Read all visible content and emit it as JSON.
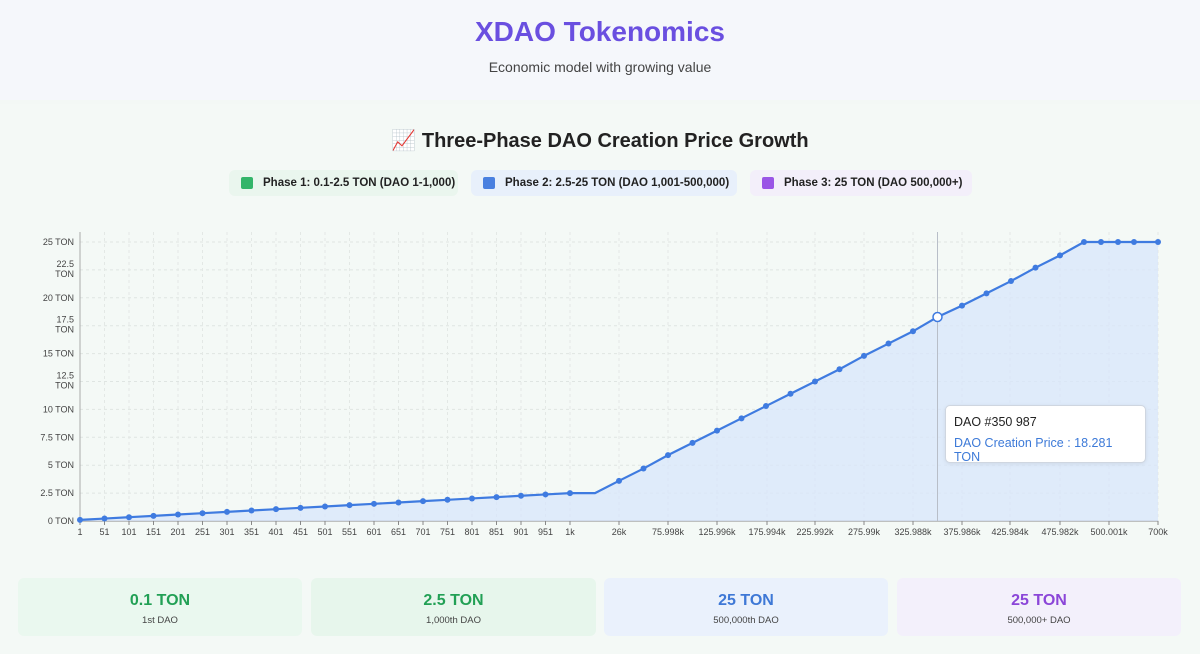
{
  "header": {
    "title": "XDAO Tokenomics",
    "subtitle": "Economic model with growing value"
  },
  "chart_title": "📈 Three-Phase DAO Creation Price Growth",
  "colors": {
    "phase1": "#34b56a",
    "phase2": "#4a80e0",
    "phase3": "#9a55e6",
    "line": "#3f7be0",
    "area": "#d8e6fb"
  },
  "legend": [
    {
      "label": "Phase 1: 0.1-2.5 TON (DAO 1-1,000)"
    },
    {
      "label": "Phase 2: 2.5-25 TON (DAO 1,001-500,000)"
    },
    {
      "label": "Phase 3: 25 TON (DAO 500,000+)"
    }
  ],
  "tooltip": {
    "title": "DAO #350 987",
    "label": "DAO Creation Price : 18.281 TON"
  },
  "chart_data": {
    "type": "area",
    "title": "📈 Three-Phase DAO Creation Price Growth",
    "xlabel": "",
    "ylabel": "",
    "ylim": [
      0,
      25
    ],
    "grid": true,
    "legend_position": "top",
    "y_ticks": [
      "0 TON",
      "2.5 TON",
      "5 TON",
      "7.5 TON",
      "10 TON",
      "12.5 TON",
      "15 TON",
      "17.5 TON",
      "20 TON",
      "22.5 TON",
      "25 TON"
    ],
    "x_tick_labels": [
      "1",
      "51",
      "101",
      "151",
      "201",
      "251",
      "301",
      "351",
      "401",
      "451",
      "501",
      "551",
      "601",
      "651",
      "701",
      "751",
      "801",
      "851",
      "901",
      "951",
      "1k",
      "26k",
      "75.998k",
      "125.996k",
      "175.994k",
      "225.992k",
      "275.99k",
      "325.988k",
      "375.986k",
      "425.984k",
      "475.982k",
      "500.001k",
      "700k"
    ],
    "points": [
      {
        "dao": 1,
        "price": 0.1
      },
      {
        "dao": 51,
        "price": 0.22
      },
      {
        "dao": 101,
        "price": 0.34
      },
      {
        "dao": 151,
        "price": 0.46
      },
      {
        "dao": 201,
        "price": 0.58
      },
      {
        "dao": 251,
        "price": 0.7
      },
      {
        "dao": 301,
        "price": 0.82
      },
      {
        "dao": 351,
        "price": 0.94
      },
      {
        "dao": 401,
        "price": 1.06
      },
      {
        "dao": 451,
        "price": 1.18
      },
      {
        "dao": 501,
        "price": 1.3
      },
      {
        "dao": 551,
        "price": 1.42
      },
      {
        "dao": 601,
        "price": 1.54
      },
      {
        "dao": 651,
        "price": 1.66
      },
      {
        "dao": 701,
        "price": 1.78
      },
      {
        "dao": 751,
        "price": 1.9
      },
      {
        "dao": 801,
        "price": 2.02
      },
      {
        "dao": 851,
        "price": 2.14
      },
      {
        "dao": 901,
        "price": 2.26
      },
      {
        "dao": 951,
        "price": 2.38
      },
      {
        "dao": 1000,
        "price": 2.5
      },
      {
        "dao": 1000,
        "price": 2.5
      },
      {
        "dao": 26000,
        "price": 3.6
      },
      {
        "dao": 50999,
        "price": 4.7
      },
      {
        "dao": 75998,
        "price": 5.9
      },
      {
        "dao": 100997,
        "price": 7.0
      },
      {
        "dao": 125996,
        "price": 8.1
      },
      {
        "dao": 150995,
        "price": 9.2
      },
      {
        "dao": 175994,
        "price": 10.3
      },
      {
        "dao": 200993,
        "price": 11.4
      },
      {
        "dao": 225992,
        "price": 12.5
      },
      {
        "dao": 250991,
        "price": 13.6
      },
      {
        "dao": 275990,
        "price": 14.8
      },
      {
        "dao": 300989,
        "price": 15.9
      },
      {
        "dao": 325988,
        "price": 17.0
      },
      {
        "dao": 350987,
        "price": 18.281
      },
      {
        "dao": 375986,
        "price": 19.3
      },
      {
        "dao": 400985,
        "price": 20.4
      },
      {
        "dao": 425984,
        "price": 21.5
      },
      {
        "dao": 450983,
        "price": 22.7
      },
      {
        "dao": 475982,
        "price": 23.8
      },
      {
        "dao": 500001,
        "price": 25
      },
      {
        "dao": 550000,
        "price": 25
      },
      {
        "dao": 600000,
        "price": 25
      },
      {
        "dao": 650000,
        "price": 25
      },
      {
        "dao": 700000,
        "price": 25
      }
    ],
    "hover_index": 35
  },
  "stats": [
    {
      "value": "0.1 TON",
      "label": "1st DAO"
    },
    {
      "value": "2.5 TON",
      "label": "1,000th DAO"
    },
    {
      "value": "25 TON",
      "label": "500,000th DAO"
    },
    {
      "value": "25 TON",
      "label": "500,000+ DAO"
    }
  ]
}
